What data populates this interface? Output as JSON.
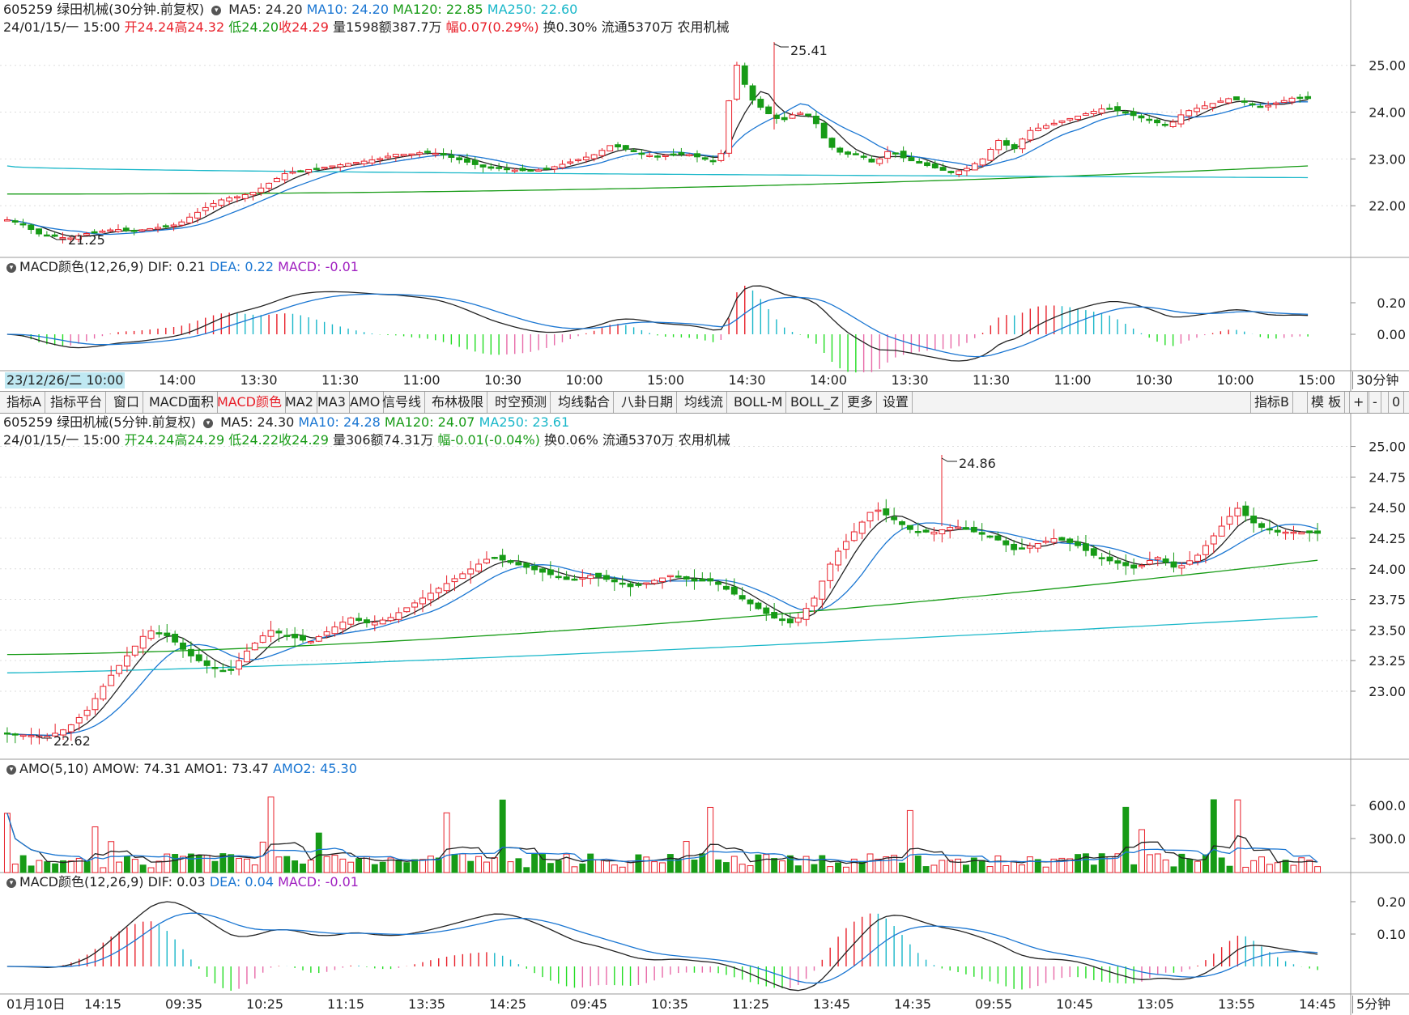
{
  "top_chart": {
    "title": "605259 绿田机械(30分钟.前复权)",
    "ma": [
      {
        "label": "MA5: 24.20",
        "color": "#222222"
      },
      {
        "label": "MA10: 24.20",
        "color": "#1a76d2"
      },
      {
        "label": "MA120: 22.85",
        "color": "#179b16"
      },
      {
        "label": "MA250: 22.60",
        "color": "#19b7c9"
      }
    ],
    "info": {
      "date": "24/01/15/一 15:00",
      "open": "开24.24",
      "high": "高24.32",
      "low": "低24.20",
      "close": "收24.29",
      "volume": "量1598",
      "amount": "额387.7万",
      "change": "幅0.07(0.29%)",
      "turnover": "换0.30%",
      "float": "流通5370万",
      "industry": "农用机械"
    },
    "max_label": "25.41",
    "min_label": "21.25",
    "y_ticks": [
      "25.00",
      "24.00",
      "23.00",
      "22.00"
    ]
  },
  "top_macd": {
    "title": "MACD颜色(12,26,9)",
    "dif": "DIF: 0.21",
    "dea": "DEA: 0.22",
    "macd": "MACD: -0.01",
    "y_ticks": [
      "0.20",
      "0.00"
    ]
  },
  "top_time_axis": {
    "first_label": "23/12/26/二 10:00",
    "labels": [
      "14:00",
      "13:30",
      "11:30",
      "11:00",
      "10:30",
      "10:00",
      "15:00",
      "14:30",
      "14:00",
      "13:30",
      "11:30",
      "11:00",
      "10:30",
      "10:00",
      "15:00"
    ],
    "period": "30分钟"
  },
  "toolbar": {
    "items": [
      "指标A",
      "指标平台",
      "窗口",
      "MACD面积",
      "MACD颜色",
      "MA2",
      "MA3",
      "AMO",
      "信号线",
      "布林极限",
      "时空预测",
      "均线黏合",
      "八卦日期",
      "均线流",
      "BOLL-M",
      "BOLL_Z",
      "更多",
      "设置"
    ],
    "active": "MACD颜色",
    "right_items": [
      "指标B",
      "模 板",
      "+",
      "-",
      "0"
    ]
  },
  "bottom_chart": {
    "title": "605259 绿田机械(5分钟.前复权)",
    "ma": [
      {
        "label": "MA5: 24.30",
        "color": "#222222"
      },
      {
        "label": "MA10: 24.28",
        "color": "#1a76d2"
      },
      {
        "label": "MA120: 24.07",
        "color": "#179b16"
      },
      {
        "label": "MA250: 23.61",
        "color": "#19b7c9"
      }
    ],
    "info": {
      "date": "24/01/15/一 15:00",
      "open": "开24.24",
      "high": "高24.29",
      "low": "低24.22",
      "close": "收24.29",
      "volume": "量306",
      "amount": "额74.31万",
      "change": "幅-0.01(-0.04%)",
      "turnover": "换0.06%",
      "float": "流通5370万",
      "industry": "农用机械"
    },
    "max_label": "24.86",
    "min_label": "22.62",
    "y_ticks": [
      "25.00",
      "24.75",
      "24.50",
      "24.25",
      "24.00",
      "23.75",
      "23.50",
      "23.25",
      "23.00"
    ]
  },
  "amo": {
    "title": "AMO(5,10)",
    "amow": "AMOW: 74.31",
    "amo1": "AMO1: 73.47",
    "amo2": "AMO2: 45.30",
    "y_ticks": [
      "600.0",
      "300.0"
    ]
  },
  "bottom_macd": {
    "title": "MACD颜色(12,26,9)",
    "dif": "DIF: 0.03",
    "dea": "DEA: 0.04",
    "macd": "MACD: -0.01",
    "y_ticks": [
      "0.20",
      "0.10"
    ]
  },
  "bottom_time_axis": {
    "labels": [
      "01月10日",
      "14:15",
      "09:35",
      "10:25",
      "11:15",
      "13:35",
      "14:25",
      "09:45",
      "10:35",
      "11:25",
      "13:45",
      "14:35",
      "09:55",
      "10:45",
      "13:05",
      "13:55",
      "14:45"
    ],
    "period": "5分钟"
  },
  "chart_data": [
    {
      "type": "candlestick",
      "title": "605259 绿田机械(30分钟.前复权)",
      "y_ticks": [
        25.0,
        24.0,
        23.0,
        22.0
      ],
      "ylim": [
        21.0,
        25.6
      ],
      "high_marker": 25.41,
      "low_marker": 21.25,
      "close_path": [
        21.7,
        21.6,
        21.4,
        21.35,
        21.3,
        21.4,
        21.45,
        21.5,
        21.45,
        21.5,
        21.55,
        21.6,
        21.8,
        22.0,
        22.15,
        22.2,
        22.3,
        22.5,
        22.7,
        22.75,
        22.8,
        22.85,
        22.9,
        22.95,
        23.0,
        23.1,
        23.1,
        23.15,
        23.1,
        23.0,
        22.9,
        22.8,
        22.8,
        22.75,
        22.75,
        22.8,
        22.9,
        23.0,
        23.1,
        23.3,
        23.2,
        23.1,
        23.05,
        23.1,
        23.1,
        23.0,
        22.9,
        25.1,
        24.3,
        24.0,
        23.8,
        24.0,
        23.9,
        23.3,
        23.1,
        23.1,
        22.9,
        23.2,
        23.0,
        22.9,
        22.8,
        22.7,
        22.8,
        23.0,
        23.4,
        23.2,
        23.6,
        23.7,
        23.8,
        23.9,
        24.0,
        24.1,
        24.0,
        23.9,
        23.8,
        23.7,
        24.0,
        24.1,
        24.2,
        24.3,
        24.2,
        24.1,
        24.2,
        24.3,
        24.29
      ],
      "ma_values": {
        "MA5": 24.2,
        "MA10": 24.2,
        "MA120": 22.85,
        "MA250": 22.6
      }
    },
    {
      "type": "candlestick",
      "title": "605259 绿田机械(5分钟.前复权)",
      "y_ticks": [
        25.0,
        24.75,
        24.5,
        24.25,
        24.0,
        23.75,
        23.5,
        23.25,
        23.0
      ],
      "ylim": [
        22.55,
        25.05
      ],
      "high_marker": 24.86,
      "low_marker": 22.62,
      "close_path": [
        22.65,
        22.64,
        22.63,
        22.7,
        22.85,
        23.1,
        23.3,
        23.5,
        23.45,
        23.3,
        23.2,
        23.15,
        23.35,
        23.5,
        23.45,
        23.4,
        23.5,
        23.6,
        23.55,
        23.6,
        23.7,
        23.8,
        23.9,
        24.0,
        24.1,
        24.05,
        24.0,
        23.95,
        23.9,
        23.95,
        23.9,
        23.85,
        23.9,
        23.95,
        23.9,
        23.9,
        23.8,
        23.7,
        23.6,
        23.55,
        23.75,
        24.1,
        24.3,
        24.5,
        24.4,
        24.3,
        24.3,
        24.35,
        24.3,
        24.25,
        24.15,
        24.2,
        24.25,
        24.2,
        24.1,
        24.05,
        24.0,
        24.1,
        24.0,
        24.1,
        24.3,
        24.5,
        24.35,
        24.3,
        24.3,
        24.29
      ],
      "ma_values": {
        "MA5": 24.3,
        "MA10": 24.28,
        "MA120": 24.07,
        "MA250": 23.61
      }
    }
  ]
}
